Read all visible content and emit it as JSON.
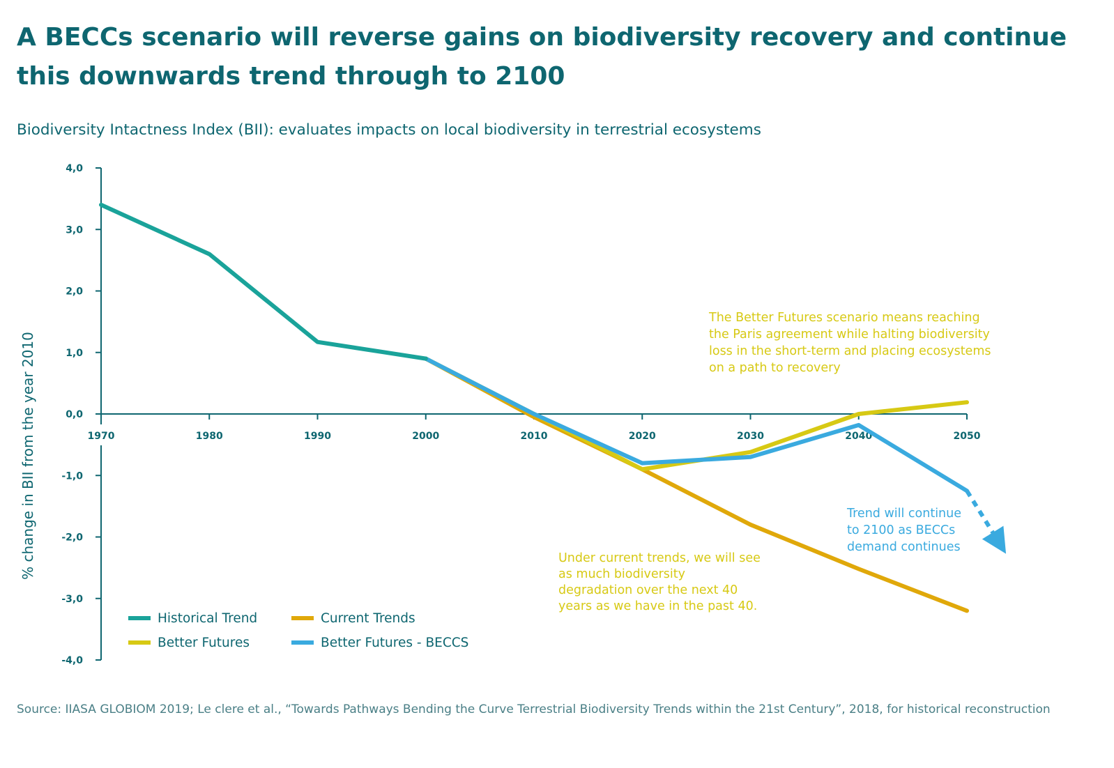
{
  "title": "A BECCs scenario will reverse gains on biodiversity recovery and continue this downwards trend through to 2100",
  "subtitle": "Biodiversity Intactness Index (BII): evaluates impacts on local biodiversity in terrestrial ecosystems",
  "source": "Source: IIASA GLOBIOM 2019; Le clere et al., “Towards Pathways Bending the Curve Terrestrial Biodiversity Trends within the 21st Century”, 2018, for historical reconstruction",
  "colors": {
    "title": "#0e6670",
    "historical": "#1aa39a",
    "current": "#e0a80a",
    "better": "#d7c914",
    "beccs": "#3aaadf"
  },
  "chart_data": {
    "type": "line",
    "ylabel": "% change in BII from the year 2010",
    "xlabel": "",
    "x_ticks": [
      "1970",
      "1980",
      "1990",
      "2000",
      "2010",
      "2020",
      "2030",
      "2040",
      "2050"
    ],
    "y_ticks": [
      "4,0",
      "3,0",
      "2,0",
      "1,0",
      "0,0",
      "-1,0",
      "-2,0",
      "-3,0",
      "-4,0"
    ],
    "xlim": [
      1970,
      2050
    ],
    "ylim": [
      -4.0,
      4.0
    ],
    "grid": false,
    "legend_position": "bottom-left",
    "series": [
      {
        "name": "Historical Trend",
        "color": "#1aa39a",
        "x": [
          1970,
          1980,
          1990,
          2000
        ],
        "y": [
          3.4,
          2.6,
          1.17,
          0.9
        ]
      },
      {
        "name": "Current Trends",
        "color": "#e0a80a",
        "x": [
          2000,
          2010,
          2020,
          2030,
          2040,
          2050
        ],
        "y": [
          0.9,
          -0.05,
          -0.9,
          -1.8,
          -2.52,
          -3.2
        ]
      },
      {
        "name": "Better Futures",
        "color": "#d7c914",
        "x": [
          2000,
          2010,
          2020,
          2030,
          2040,
          2050
        ],
        "y": [
          0.9,
          0.0,
          -0.9,
          -0.62,
          0.0,
          0.19
        ]
      },
      {
        "name": "Better Futures - BECCS",
        "color": "#3aaadf",
        "x": [
          2000,
          2010,
          2020,
          2030,
          2040,
          2050
        ],
        "y": [
          0.9,
          0.0,
          -0.8,
          -0.7,
          -0.18,
          -1.25
        ]
      }
    ],
    "trend_extension": {
      "series": "Better Futures - BECCS",
      "style": "dotted-arrow",
      "x": [
        2050,
        2053
      ],
      "y": [
        -1.25,
        -2.1
      ]
    },
    "annotations": [
      {
        "color": "#d7c914",
        "lines": [
          "The Better Futures scenario means reaching",
          "the Paris agreement while halting biodiversity",
          "loss in the short-term and placing ecosystems",
          "on a path to recovery"
        ]
      },
      {
        "color": "#3aaadf",
        "lines": [
          "Trend will continue",
          "to 2100 as BECCs",
          "demand continues"
        ]
      },
      {
        "color": "#d7c914",
        "lines": [
          "Under current trends, we will see",
          "as much biodiversity",
          "degradation over the next 40",
          "years as we have in the past 40."
        ]
      }
    ]
  }
}
